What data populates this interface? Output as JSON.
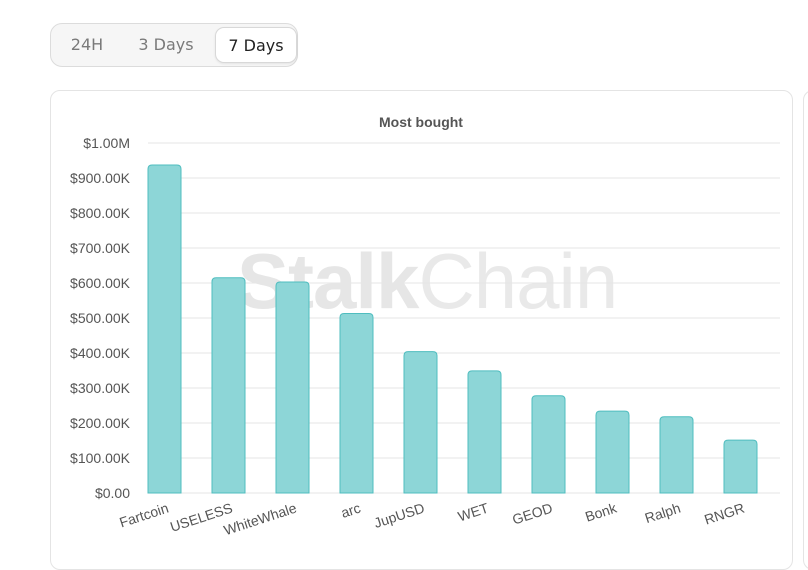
{
  "range_tabs": {
    "items": [
      {
        "label": "24H",
        "active": false
      },
      {
        "label": "3 Days",
        "active": false
      },
      {
        "label": "7 Days",
        "active": true
      }
    ]
  },
  "watermark": {
    "part1": "Stalk",
    "part2": "Chain"
  },
  "colors": {
    "bar_fill": "#8dd6d7",
    "bar_stroke": "#4fbdbf",
    "grid": "#e5e5e5"
  },
  "chart_data": {
    "type": "bar",
    "title": "Most bought",
    "xlabel": "",
    "ylabel": "",
    "ylim": [
      0,
      1000000
    ],
    "yticks": [
      0,
      100000,
      200000,
      300000,
      400000,
      500000,
      600000,
      700000,
      800000,
      900000,
      1000000
    ],
    "ytick_labels": [
      "$0.00",
      "$100.00K",
      "$200.00K",
      "$300.00K",
      "$400.00K",
      "$500.00K",
      "$600.00K",
      "$700.00K",
      "$800.00K",
      "$900.00K",
      "$1.00M"
    ],
    "grid": true,
    "legend": "none",
    "categories": [
      "Fartcoin",
      "USELESS",
      "WhiteWhale",
      "arc",
      "JupUSD",
      "WET",
      "GEOD",
      "Bonk",
      "Ralph",
      "RNGR"
    ],
    "values": [
      937000,
      615000,
      603000,
      513000,
      404000,
      349000,
      278000,
      234000,
      218000,
      151000
    ]
  }
}
